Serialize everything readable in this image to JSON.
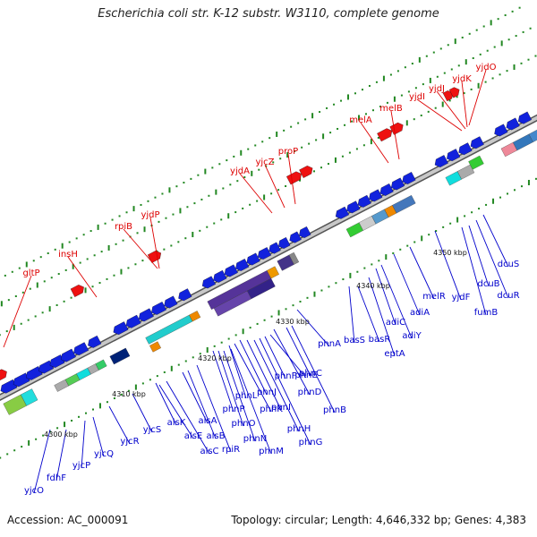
{
  "title": "Escherichia coli str. K-12 substr. W3110, complete genome",
  "footer": {
    "accession": "Accession: AC_000091",
    "stats": "Topology: circular; Length: 4,646,332 bp; Genes: 4,383"
  },
  "colors": {
    "backbone": "#8c8c8c",
    "forward_label": "#dd0000",
    "reverse_label": "#0000cc",
    "forward_gene": "#ee1111",
    "reverse_gene": "#1122dd",
    "tick_dot": "#228822"
  },
  "ticks": [
    "4300 kbp",
    "4310 kbp",
    "4320 kbp",
    "4330 kbp",
    "4340 kbp",
    "4350 kbp"
  ],
  "forward_genes": [
    "gltP",
    "insH",
    "rpiB",
    "yjdP",
    "yjdA",
    "yjcZ",
    "proP",
    "melA",
    "melB",
    "yjdI",
    "yjdJ",
    "yjdK",
    "yjdO"
  ],
  "reverse_genes": [
    "yjcO",
    "fdhF",
    "yjcP",
    "yjcQ",
    "yjcR",
    "yjcS",
    "alsK",
    "alsE",
    "alsC",
    "alsA",
    "alsB",
    "rpiR",
    "phnP",
    "phnO",
    "phnN",
    "phnM",
    "phnL",
    "phnK",
    "phnJ",
    "phnI",
    "phnH",
    "phnG",
    "phnF",
    "phnE",
    "phnD",
    "phnC",
    "phnB",
    "phnA",
    "basS",
    "basR",
    "eptA",
    "adiC",
    "adiY",
    "adiA",
    "melR",
    "yjdF",
    "fumB",
    "dcuB",
    "dcuR",
    "dcuS"
  ]
}
